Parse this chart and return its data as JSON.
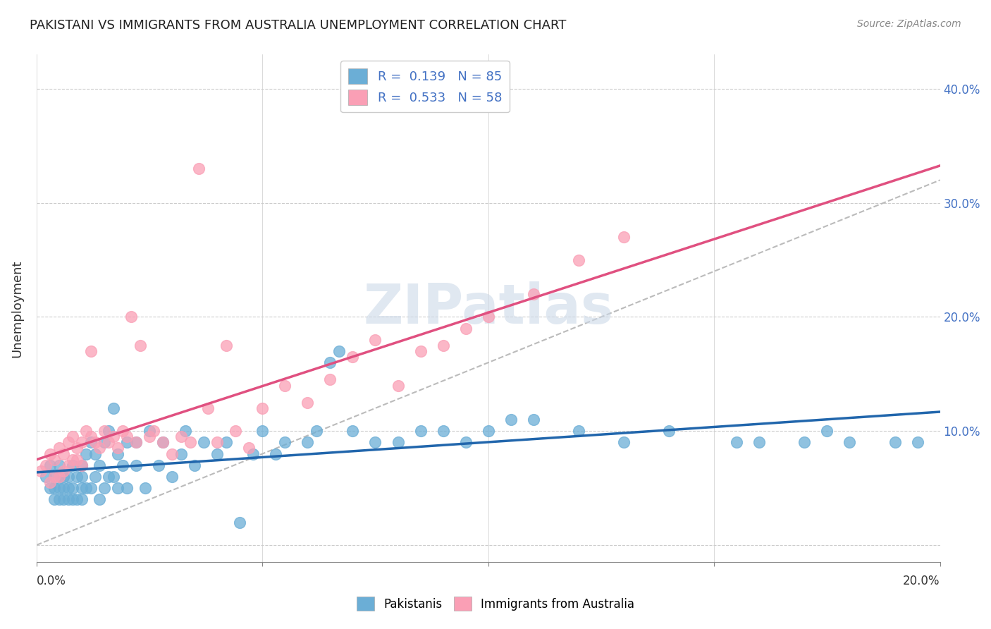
{
  "title": "PAKISTANI VS IMMIGRANTS FROM AUSTRALIA UNEMPLOYMENT CORRELATION CHART",
  "source": "Source: ZipAtlas.com",
  "ylabel": "Unemployment",
  "yticks": [
    0.0,
    0.1,
    0.2,
    0.3,
    0.4
  ],
  "ytick_labels": [
    "",
    "10.0%",
    "20.0%",
    "30.0%",
    "40.0%"
  ],
  "xlim": [
    0.0,
    0.2
  ],
  "ylim": [
    -0.015,
    0.43
  ],
  "legend_r1": "R =  0.139   N = 85",
  "legend_r2": "R =  0.533   N = 58",
  "blue_color": "#6baed6",
  "pink_color": "#fa9fb5",
  "blue_line_color": "#2166ac",
  "pink_line_color": "#e05080",
  "ref_line_color": "#bbbbbb",
  "watermark_color": "#ccd9e8",
  "pakistanis_x": [
    0.002,
    0.003,
    0.003,
    0.004,
    0.004,
    0.004,
    0.005,
    0.005,
    0.005,
    0.005,
    0.006,
    0.006,
    0.006,
    0.007,
    0.007,
    0.007,
    0.008,
    0.008,
    0.008,
    0.009,
    0.009,
    0.01,
    0.01,
    0.01,
    0.01,
    0.011,
    0.011,
    0.012,
    0.012,
    0.013,
    0.013,
    0.014,
    0.014,
    0.015,
    0.015,
    0.016,
    0.016,
    0.017,
    0.017,
    0.018,
    0.018,
    0.019,
    0.02,
    0.02,
    0.022,
    0.022,
    0.024,
    0.025,
    0.027,
    0.028,
    0.03,
    0.032,
    0.033,
    0.035,
    0.037,
    0.04,
    0.042,
    0.045,
    0.048,
    0.05,
    0.053,
    0.055,
    0.06,
    0.062,
    0.065,
    0.067,
    0.07,
    0.075,
    0.08,
    0.085,
    0.09,
    0.095,
    0.1,
    0.105,
    0.11,
    0.12,
    0.13,
    0.14,
    0.155,
    0.16,
    0.17,
    0.175,
    0.18,
    0.19,
    0.195
  ],
  "pakistanis_y": [
    0.06,
    0.05,
    0.07,
    0.04,
    0.05,
    0.06,
    0.04,
    0.05,
    0.06,
    0.07,
    0.04,
    0.05,
    0.06,
    0.04,
    0.05,
    0.06,
    0.04,
    0.05,
    0.07,
    0.04,
    0.06,
    0.04,
    0.05,
    0.06,
    0.07,
    0.05,
    0.08,
    0.05,
    0.09,
    0.06,
    0.08,
    0.04,
    0.07,
    0.05,
    0.09,
    0.06,
    0.1,
    0.06,
    0.12,
    0.08,
    0.05,
    0.07,
    0.05,
    0.09,
    0.07,
    0.09,
    0.05,
    0.1,
    0.07,
    0.09,
    0.06,
    0.08,
    0.1,
    0.07,
    0.09,
    0.08,
    0.09,
    0.02,
    0.08,
    0.1,
    0.08,
    0.09,
    0.09,
    0.1,
    0.16,
    0.17,
    0.1,
    0.09,
    0.09,
    0.1,
    0.1,
    0.09,
    0.1,
    0.11,
    0.11,
    0.1,
    0.09,
    0.1,
    0.09,
    0.09,
    0.09,
    0.1,
    0.09,
    0.09,
    0.09
  ],
  "australia_x": [
    0.001,
    0.002,
    0.003,
    0.003,
    0.004,
    0.004,
    0.005,
    0.005,
    0.006,
    0.006,
    0.007,
    0.007,
    0.008,
    0.008,
    0.009,
    0.009,
    0.01,
    0.01,
    0.011,
    0.012,
    0.012,
    0.013,
    0.014,
    0.015,
    0.016,
    0.017,
    0.018,
    0.019,
    0.02,
    0.021,
    0.022,
    0.023,
    0.025,
    0.026,
    0.028,
    0.03,
    0.032,
    0.034,
    0.036,
    0.038,
    0.04,
    0.042,
    0.044,
    0.047,
    0.05,
    0.055,
    0.06,
    0.065,
    0.07,
    0.075,
    0.08,
    0.085,
    0.09,
    0.095,
    0.1,
    0.11,
    0.12,
    0.13
  ],
  "australia_y": [
    0.065,
    0.07,
    0.055,
    0.08,
    0.06,
    0.075,
    0.06,
    0.085,
    0.065,
    0.08,
    0.07,
    0.09,
    0.075,
    0.095,
    0.075,
    0.085,
    0.07,
    0.09,
    0.1,
    0.095,
    0.17,
    0.09,
    0.085,
    0.1,
    0.09,
    0.095,
    0.085,
    0.1,
    0.095,
    0.2,
    0.09,
    0.175,
    0.095,
    0.1,
    0.09,
    0.08,
    0.095,
    0.09,
    0.33,
    0.12,
    0.09,
    0.175,
    0.1,
    0.085,
    0.12,
    0.14,
    0.125,
    0.145,
    0.165,
    0.18,
    0.14,
    0.17,
    0.175,
    0.19,
    0.2,
    0.22,
    0.25,
    0.27
  ],
  "background_color": "#ffffff",
  "grid_color": "#cccccc"
}
